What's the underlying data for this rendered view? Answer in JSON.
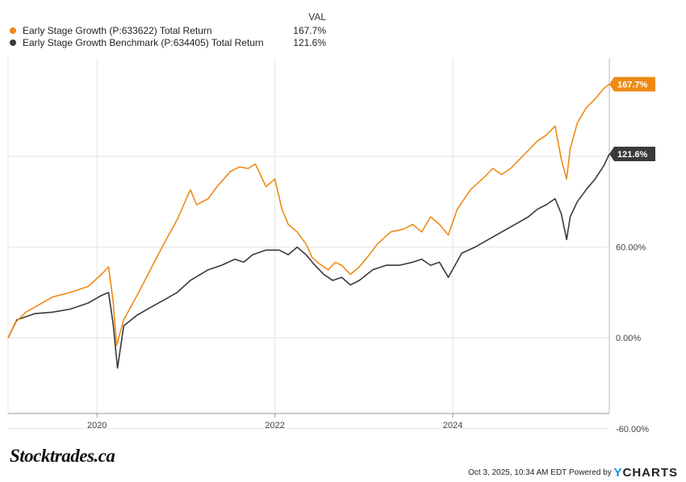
{
  "legend": {
    "value_header": "VAL",
    "items": [
      {
        "name": "Early Stage Growth (P:633622) Total Return",
        "value": "167.7%",
        "color": "#ee8a15"
      },
      {
        "name": "Early Stage Growth Benchmark (P:634405) Total Return",
        "value": "121.6%",
        "color": "#3a3a3a"
      }
    ]
  },
  "chart_data": {
    "type": "line",
    "title": "",
    "xlabel": "",
    "ylabel": "",
    "x_range": [
      2019.0,
      2025.76
    ],
    "ylim": [
      -50,
      185
    ],
    "x_ticks": [
      2020,
      2022,
      2024
    ],
    "x_tick_labels": [
      "2020",
      "2022",
      "2024"
    ],
    "y_ticks": [
      60,
      0,
      -60
    ],
    "y_tick_labels": [
      "60.00%",
      "0.00%",
      "-60.00%"
    ],
    "series": [
      {
        "name": "Early Stage Growth (P:633622) Total Return",
        "color": "#ee8a15",
        "end_label": "167.7%",
        "x": [
          2019.0,
          2019.08,
          2019.2,
          2019.35,
          2019.5,
          2019.7,
          2019.9,
          2020.05,
          2020.13,
          2020.18,
          2020.22,
          2020.3,
          2020.45,
          2020.6,
          2020.75,
          2020.9,
          2021.05,
          2021.12,
          2021.25,
          2021.35,
          2021.5,
          2021.6,
          2021.7,
          2021.78,
          2021.9,
          2022.0,
          2022.08,
          2022.15,
          2022.25,
          2022.35,
          2022.42,
          2022.5,
          2022.6,
          2022.68,
          2022.75,
          2022.85,
          2022.95,
          2023.05,
          2023.15,
          2023.3,
          2023.45,
          2023.55,
          2023.65,
          2023.75,
          2023.85,
          2023.95,
          2024.05,
          2024.2,
          2024.35,
          2024.45,
          2024.55,
          2024.65,
          2024.75,
          2024.85,
          2024.95,
          2025.05,
          2025.15,
          2025.22,
          2025.28,
          2025.32,
          2025.4,
          2025.5,
          2025.6,
          2025.7,
          2025.76
        ],
        "values": [
          0,
          10,
          17,
          22,
          27,
          30,
          34,
          42,
          47,
          25,
          -5,
          12,
          28,
          45,
          62,
          78,
          98,
          88,
          92,
          100,
          110,
          113,
          112,
          115,
          100,
          105,
          85,
          75,
          70,
          62,
          53,
          49,
          45,
          50,
          48,
          42,
          47,
          54,
          62,
          70,
          72,
          75,
          70,
          80,
          75,
          68,
          85,
          98,
          106,
          112,
          108,
          112,
          118,
          124,
          130,
          134,
          140,
          118,
          105,
          125,
          142,
          152,
          158,
          165,
          167.7
        ]
      },
      {
        "name": "Early Stage Growth Benchmark (P:634405) Total Return",
        "color": "#3a3a3a",
        "end_label": "121.6%",
        "x": [
          2019.0,
          2019.1,
          2019.3,
          2019.5,
          2019.7,
          2019.9,
          2020.05,
          2020.13,
          2020.18,
          2020.23,
          2020.3,
          2020.45,
          2020.6,
          2020.75,
          2020.9,
          2021.05,
          2021.25,
          2021.4,
          2021.55,
          2021.65,
          2021.75,
          2021.9,
          2022.05,
          2022.15,
          2022.25,
          2022.35,
          2022.45,
          2022.55,
          2022.65,
          2022.75,
          2022.85,
          2022.95,
          2023.1,
          2023.25,
          2023.4,
          2023.55,
          2023.65,
          2023.75,
          2023.85,
          2023.95,
          2024.1,
          2024.25,
          2024.4,
          2024.55,
          2024.7,
          2024.85,
          2024.95,
          2025.05,
          2025.15,
          2025.22,
          2025.28,
          2025.32,
          2025.4,
          2025.5,
          2025.6,
          2025.7,
          2025.76
        ],
        "values": [
          0,
          12,
          16,
          17,
          19,
          23,
          28,
          30,
          10,
          -20,
          8,
          15,
          20,
          25,
          30,
          38,
          45,
          48,
          52,
          50,
          55,
          58,
          58,
          55,
          60,
          55,
          48,
          42,
          38,
          40,
          35,
          38,
          45,
          48,
          48,
          50,
          52,
          48,
          50,
          40,
          56,
          60,
          65,
          70,
          75,
          80,
          85,
          88,
          92,
          82,
          65,
          80,
          90,
          98,
          105,
          114,
          121.6
        ]
      }
    ]
  },
  "footer": {
    "brand": "Stocktrades.ca",
    "timestamp": "Oct 3, 2025, 10:34 AM EDT Powered by",
    "ycharts_y": "Y",
    "ycharts_rest": "CHARTS"
  }
}
